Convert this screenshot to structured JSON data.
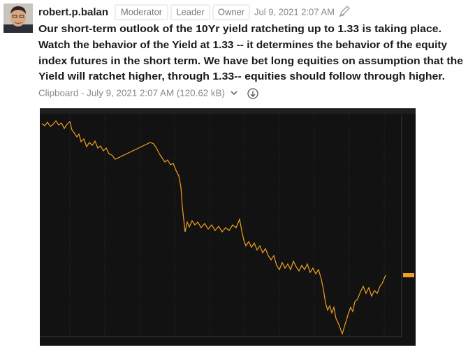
{
  "message": {
    "author": "robert.p.balan",
    "badges": [
      "Moderator",
      "Leader",
      "Owner"
    ],
    "timestamp": "Jul 9, 2021 2:07 AM",
    "lines": [
      "Our short-term outlook of the 10Yr yield ratcheting up to 1.33 is taking place.",
      "Watch the behavior of the Yield at 1.33 -- it determines the behavior of the equity",
      "index futures in the short term. We have bet long equities on assumption that the",
      "Yield will ratchet higher, through 1.33-- equities should follow through higher."
    ],
    "attachment": "Clipboard - July 9, 2021 2:07 AM (120.62 kB)"
  }
}
